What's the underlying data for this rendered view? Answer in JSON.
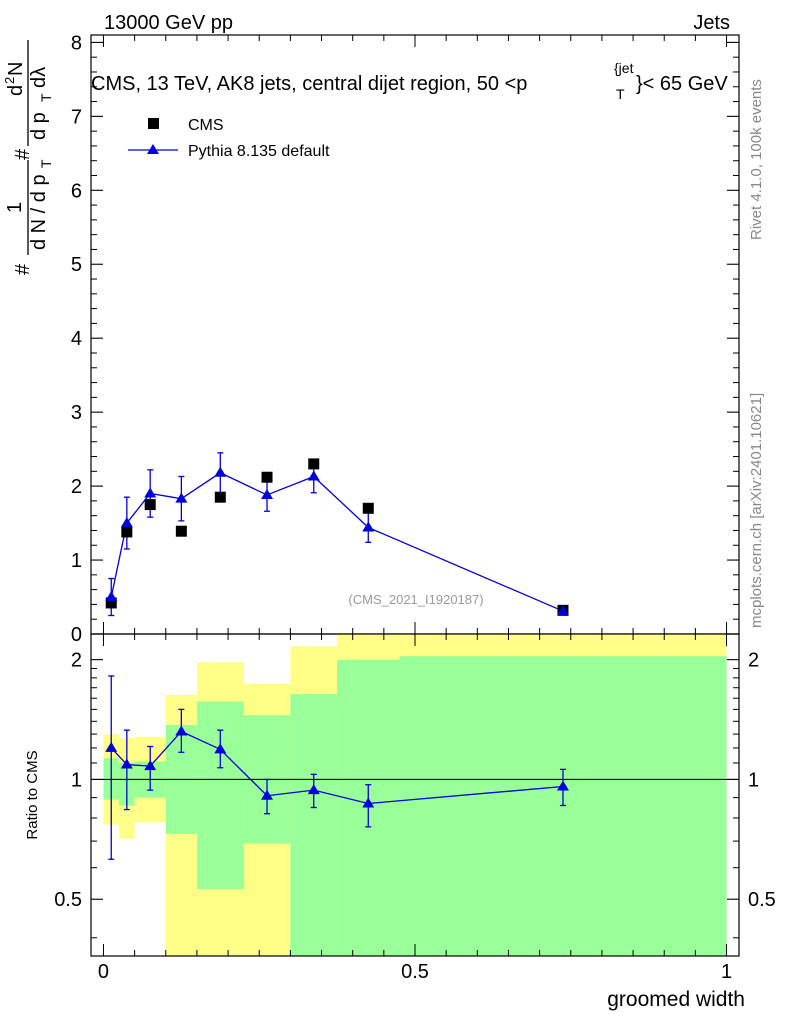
{
  "header": {
    "left": "13000 GeV pp",
    "right": "Jets"
  },
  "side_labels": {
    "rivet": "Rivet 4.1.0,  100k events",
    "mcplots": "mcplots.cern.ch [arXiv:2401.10621]"
  },
  "chart_data": [
    {
      "type": "scatter",
      "title": "CMS, 13 TeV, AK8 jets, central dijet region, 50 <p",
      "title_sup": "{jet",
      "title_sub": "T",
      "title_tail": "}< 65 GeV",
      "ylabel_parts": [
        "#",
        "1",
        "d N / d p",
        "T",
        "#",
        "d",
        "2",
        "N",
        "d p",
        "T",
        "dλ"
      ],
      "xlim": [
        -0.02,
        1.02
      ],
      "ylim": [
        0,
        8.1
      ],
      "yticks": [
        0,
        1,
        2,
        3,
        4,
        5,
        6,
        7,
        8
      ],
      "ytick_labels": [
        "0",
        "1",
        "2",
        "3",
        "4",
        "5",
        "6",
        "7",
        "8"
      ],
      "watermark": "(CMS_2021_I1920187)",
      "legend": [
        {
          "label": "CMS",
          "marker": "square",
          "color": "#000000"
        },
        {
          "label": "Pythia 8.135 default",
          "marker": "triangle",
          "color": "#0000dd"
        }
      ],
      "series": [
        {
          "name": "CMS",
          "color": "#000000",
          "x": [
            0.0125,
            0.0375,
            0.075,
            0.125,
            0.1875,
            0.2625,
            0.3375,
            0.425,
            0.7375
          ],
          "y": [
            0.42,
            1.38,
            1.75,
            1.39,
            1.85,
            2.12,
            2.3,
            1.7,
            0.32
          ]
        },
        {
          "name": "Pythia 8.135 default",
          "color": "#0000dd",
          "x": [
            0.0125,
            0.0375,
            0.075,
            0.125,
            0.1875,
            0.2625,
            0.3375,
            0.425,
            0.7375
          ],
          "y": [
            0.5,
            1.5,
            1.9,
            1.83,
            2.18,
            1.88,
            2.13,
            1.44,
            0.31
          ],
          "yerr": [
            0.25,
            0.35,
            0.32,
            0.3,
            0.27,
            0.22,
            0.22,
            0.2,
            0.03
          ]
        }
      ]
    },
    {
      "type": "line",
      "ylabel": "Ratio to CMS",
      "xlabel": "groomed width",
      "xlim": [
        -0.02,
        1.02
      ],
      "ylim": [
        0.36,
        2.32
      ],
      "scale": "log",
      "xticks": [
        0,
        0.5,
        1
      ],
      "xtick_labels": [
        "0",
        "0.5",
        "1"
      ],
      "yticks": [
        0.5,
        1,
        2
      ],
      "ytick_labels": [
        "0.5",
        "1",
        "2"
      ],
      "reference_line": 1,
      "bands": [
        {
          "x0": 0.0,
          "x1": 0.025,
          "yellow": [
            0.77,
            1.3
          ],
          "green": [
            0.89,
            1.13
          ]
        },
        {
          "x0": 0.025,
          "x1": 0.05,
          "yellow": [
            0.71,
            1.27
          ],
          "green": [
            0.86,
            1.1
          ]
        },
        {
          "x0": 0.05,
          "x1": 0.1,
          "yellow": [
            0.78,
            1.28
          ],
          "green": [
            0.9,
            1.11
          ]
        },
        {
          "x0": 0.1,
          "x1": 0.15,
          "yellow": [
            0.36,
            1.63
          ],
          "green": [
            0.73,
            1.37
          ]
        },
        {
          "x0": 0.15,
          "x1": 0.225,
          "yellow": [
            0.36,
            1.97
          ],
          "green": [
            0.53,
            1.57
          ]
        },
        {
          "x0": 0.225,
          "x1": 0.3,
          "yellow": [
            0.36,
            1.74
          ],
          "green": [
            0.69,
            1.45
          ]
        },
        {
          "x0": 0.3,
          "x1": 0.375,
          "yellow": [
            0.39,
            2.16
          ],
          "green": [
            0.36,
            1.64
          ]
        },
        {
          "x0": 0.375,
          "x1": 0.475,
          "yellow": [
            0.36,
            2.32
          ],
          "green": [
            0.36,
            2.0
          ]
        },
        {
          "x0": 0.475,
          "x1": 1.0,
          "yellow": [
            0.36,
            2.32
          ],
          "green": [
            0.36,
            2.04
          ]
        }
      ],
      "series": [
        {
          "name": "Pythia 8.135 default",
          "color": "#0000dd",
          "x": [
            0.0125,
            0.0375,
            0.075,
            0.125,
            0.1875,
            0.2625,
            0.3375,
            0.425,
            0.7375
          ],
          "y": [
            1.2,
            1.09,
            1.08,
            1.32,
            1.19,
            0.91,
            0.94,
            0.87,
            0.96
          ],
          "yerr_lo": [
            0.57,
            0.25,
            0.14,
            0.15,
            0.12,
            0.09,
            0.09,
            0.11,
            0.1
          ],
          "yerr_hi": [
            0.62,
            0.24,
            0.13,
            0.18,
            0.14,
            0.09,
            0.09,
            0.1,
            0.1
          ]
        }
      ]
    }
  ]
}
